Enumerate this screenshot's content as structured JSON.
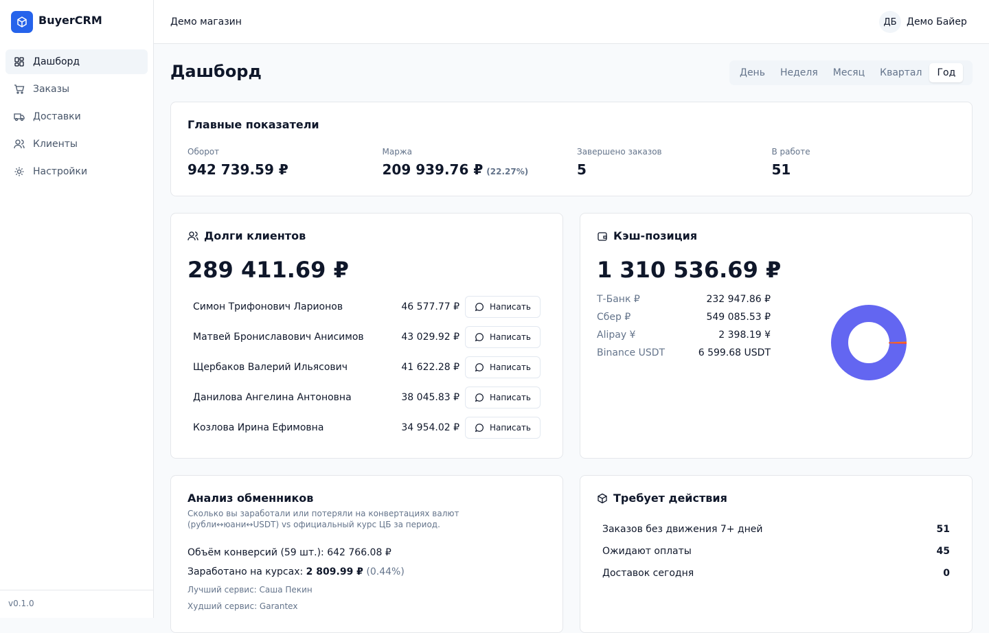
{
  "sidebar": {
    "brand": "BuyerCRM",
    "nav": [
      "Дашборд",
      "Заказы",
      "Доставки",
      "Клиенты",
      "Настройки"
    ],
    "active": 0,
    "version": "v0.1.0"
  },
  "header": {
    "store": "Демо магазин",
    "avatar": "ДБ",
    "user": "Демо Байер"
  },
  "page": {
    "title": "Дашборд",
    "periods": [
      "День",
      "Неделя",
      "Месяц",
      "Квартал",
      "Год"
    ],
    "selected": 4
  },
  "metrics": {
    "title": "Главные показатели",
    "items": [
      {
        "label": "Оборот",
        "value": "942 739.59 ₽"
      },
      {
        "label": "Маржа",
        "value": "209 939.76 ₽",
        "note": "(22.27%)"
      },
      {
        "label": "Завершено заказов",
        "value": "5"
      },
      {
        "label": "В работе",
        "value": "51"
      }
    ]
  },
  "debts": {
    "title": "Долги клиентов",
    "total": "289 411.69 ₽",
    "action": "Написать",
    "rows": [
      {
        "name": "Симон Трифонович Ларионов",
        "amount": "46 577.77 ₽"
      },
      {
        "name": "Матвей Брониславович Анисимов",
        "amount": "43 029.92 ₽"
      },
      {
        "name": "Щербаков Валерий Ильясович",
        "amount": "41 622.28 ₽"
      },
      {
        "name": "Данилова Ангелина Антоновна",
        "amount": "38 045.83 ₽"
      },
      {
        "name": "Козлова Ирина Ефимовна",
        "amount": "34 954.02 ₽"
      }
    ]
  },
  "cash": {
    "title": "Кэш-позиция",
    "total": "1 310 536.69 ₽",
    "accounts": [
      {
        "name": "Т-Банк ₽",
        "amount": "232 947.86 ₽"
      },
      {
        "name": "Сбер ₽",
        "amount": "549 085.53 ₽"
      },
      {
        "name": "Alipay ¥",
        "amount": "2 398.19 ¥"
      },
      {
        "name": "Binance USDT",
        "amount": "6 599.68 USDT"
      }
    ]
  },
  "exchangers": {
    "title": "Анализ обменников",
    "description": "Сколько вы заработали или потеряли на конвертациях валют (рубли↔юани↔USDT) vs официальный курс ЦБ за период.",
    "volume": "Объём конверсий (59 шт.): 642 766.08 ₽",
    "earned_label": "Заработано на курсах:",
    "earned": "2 809.99 ₽",
    "earned_pct": "(0.44%)",
    "best": "Лучший сервис: Саша Пекин",
    "worst": "Худший сервис: Garantex"
  },
  "actions": {
    "title": "Требует действия",
    "items": [
      {
        "label": "Заказов без движения 7+ дней",
        "count": 51
      },
      {
        "label": "Ожидают оплаты",
        "count": 45
      },
      {
        "label": "Доставок сегодня",
        "count": 0
      }
    ]
  }
}
